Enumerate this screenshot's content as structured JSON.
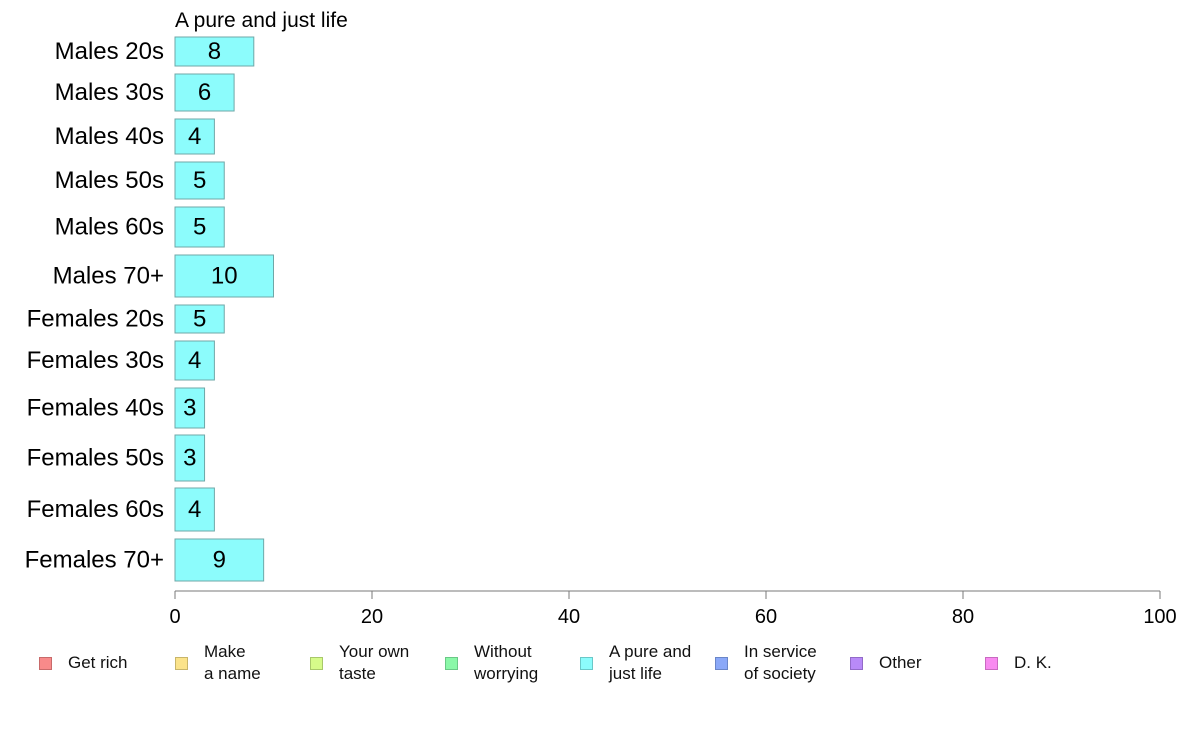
{
  "chart_data": {
    "type": "bar",
    "orientation": "horizontal",
    "title": "A pure and just life",
    "categories": [
      "Males 20s",
      "Males 30s",
      "Males 40s",
      "Males 50s",
      "Males 60s",
      "Males 70+",
      "Females 20s",
      "Females 30s",
      "Females 40s",
      "Females 50s",
      "Females 60s",
      "Females 70+"
    ],
    "values": [
      8,
      6,
      4,
      5,
      5,
      10,
      5,
      4,
      3,
      3,
      4,
      9
    ],
    "xlim": [
      0,
      100
    ],
    "xticks": [
      0,
      20,
      40,
      60,
      80,
      100
    ],
    "xlabel": "",
    "ylabel": "",
    "grid": false,
    "legend_placement": "bottom",
    "bar_color": "#8CFCFC",
    "bar_edge_color": "#6FA7A7"
  },
  "legend": [
    {
      "label": "Get rich",
      "color": "#F88A8A",
      "edge": "#C86A6A"
    },
    {
      "label": "Make\na name",
      "color": "#FBE38A",
      "edge": "#C8B56A"
    },
    {
      "label": "Your own\ntaste",
      "color": "#D6FB8A",
      "edge": "#A8C86A"
    },
    {
      "label": "Without\nworrying",
      "color": "#8AF8A8",
      "edge": "#6AC886"
    },
    {
      "label": "A pure and\njust life",
      "color": "#8CFCFC",
      "edge": "#6AC8C8"
    },
    {
      "label": "In service\nof society",
      "color": "#8AA8F8",
      "edge": "#6A86C8"
    },
    {
      "label": "Other",
      "color": "#B88AF8",
      "edge": "#926AC8"
    },
    {
      "label": "D. K.",
      "color": "#F88AF0",
      "edge": "#C86AC0"
    }
  ]
}
